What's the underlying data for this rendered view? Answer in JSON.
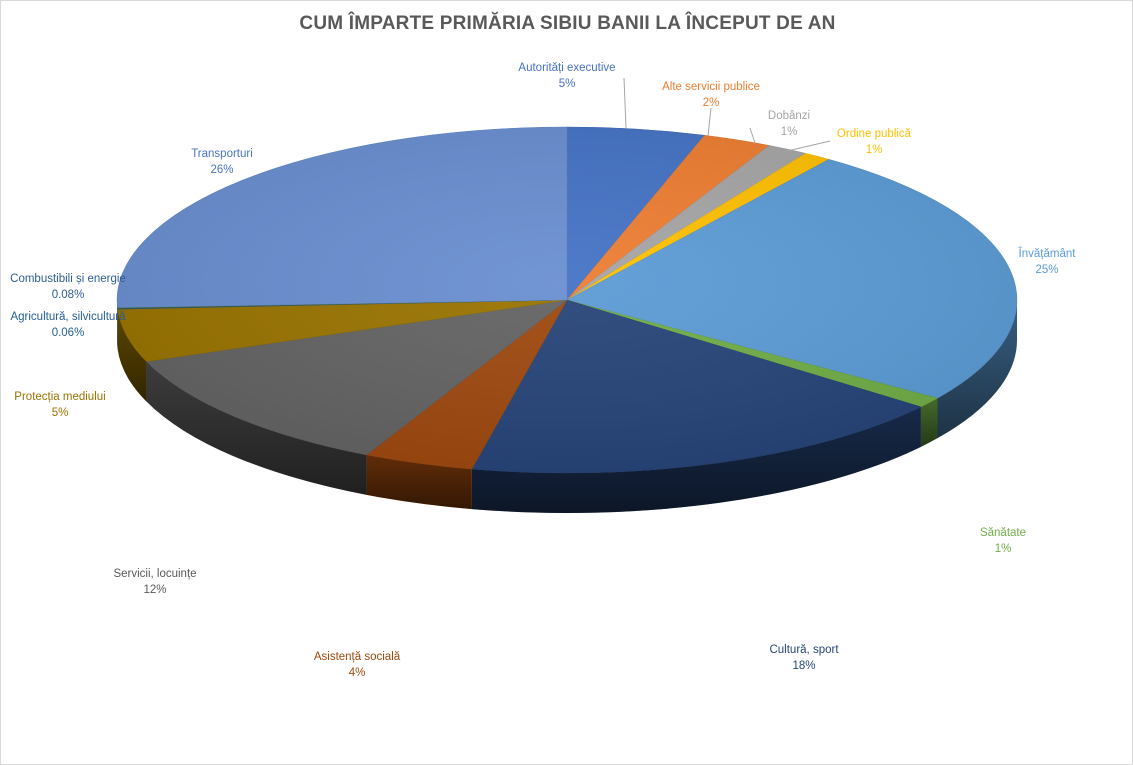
{
  "chart_data": {
    "type": "pie",
    "title": "CUM ÎMPARTE PRIMĂRIA SIBIU BANII LA ÎNCEPUT DE AN",
    "slices": [
      {
        "label": "Autorități executive",
        "value": 5,
        "display": "5%",
        "color": "#4472c4",
        "label_color": "#4472c4"
      },
      {
        "label": "Alte servicii publice",
        "value": 2.5,
        "display": "2%",
        "color": "#ed7d31",
        "label_color": "#ed7d31"
      },
      {
        "label": "Dobânzi",
        "value": 1.5,
        "display": "1%",
        "color": "#a5a5a5",
        "label_color": "#a5a5a5"
      },
      {
        "label": "Ordine publică",
        "value": 1,
        "display": "1%",
        "color": "#ffc000",
        "label_color": "#ffc000"
      },
      {
        "label": "Învățământ",
        "value": 25,
        "display": "25%",
        "color": "#5b9bd5",
        "label_color": "#5b9bd5"
      },
      {
        "label": "Sănătate",
        "value": 1,
        "display": "1%",
        "color": "#70ad47",
        "label_color": "#70ad47"
      },
      {
        "label": "Cultură, sport",
        "value": 18,
        "display": "18%",
        "color": "#264478",
        "label_color": "#264478"
      },
      {
        "label": "Asistență socială",
        "value": 4,
        "display": "4%",
        "color": "#9e480e",
        "label_color": "#9e480e"
      },
      {
        "label": "Servicii, locuințe",
        "value": 12,
        "display": "12%",
        "color": "#636363",
        "label_color": "#595959"
      },
      {
        "label": "Protecția mediului",
        "value": 5,
        "display": "5%",
        "color": "#997300",
        "label_color": "#997300"
      },
      {
        "label": "Agricultură, silvicultură",
        "value": 0.06,
        "display": "0.06%",
        "color": "#255e91",
        "label_color": "#255e91"
      },
      {
        "label": "Combustibili și energie",
        "value": 0.08,
        "display": "0.08%",
        "color": "#43682b",
        "label_color": "#2e5e91"
      },
      {
        "label": "Transporturi",
        "value": 26,
        "display": "26%",
        "color": "#698ed0",
        "label_color": "#4a74c2"
      }
    ]
  }
}
